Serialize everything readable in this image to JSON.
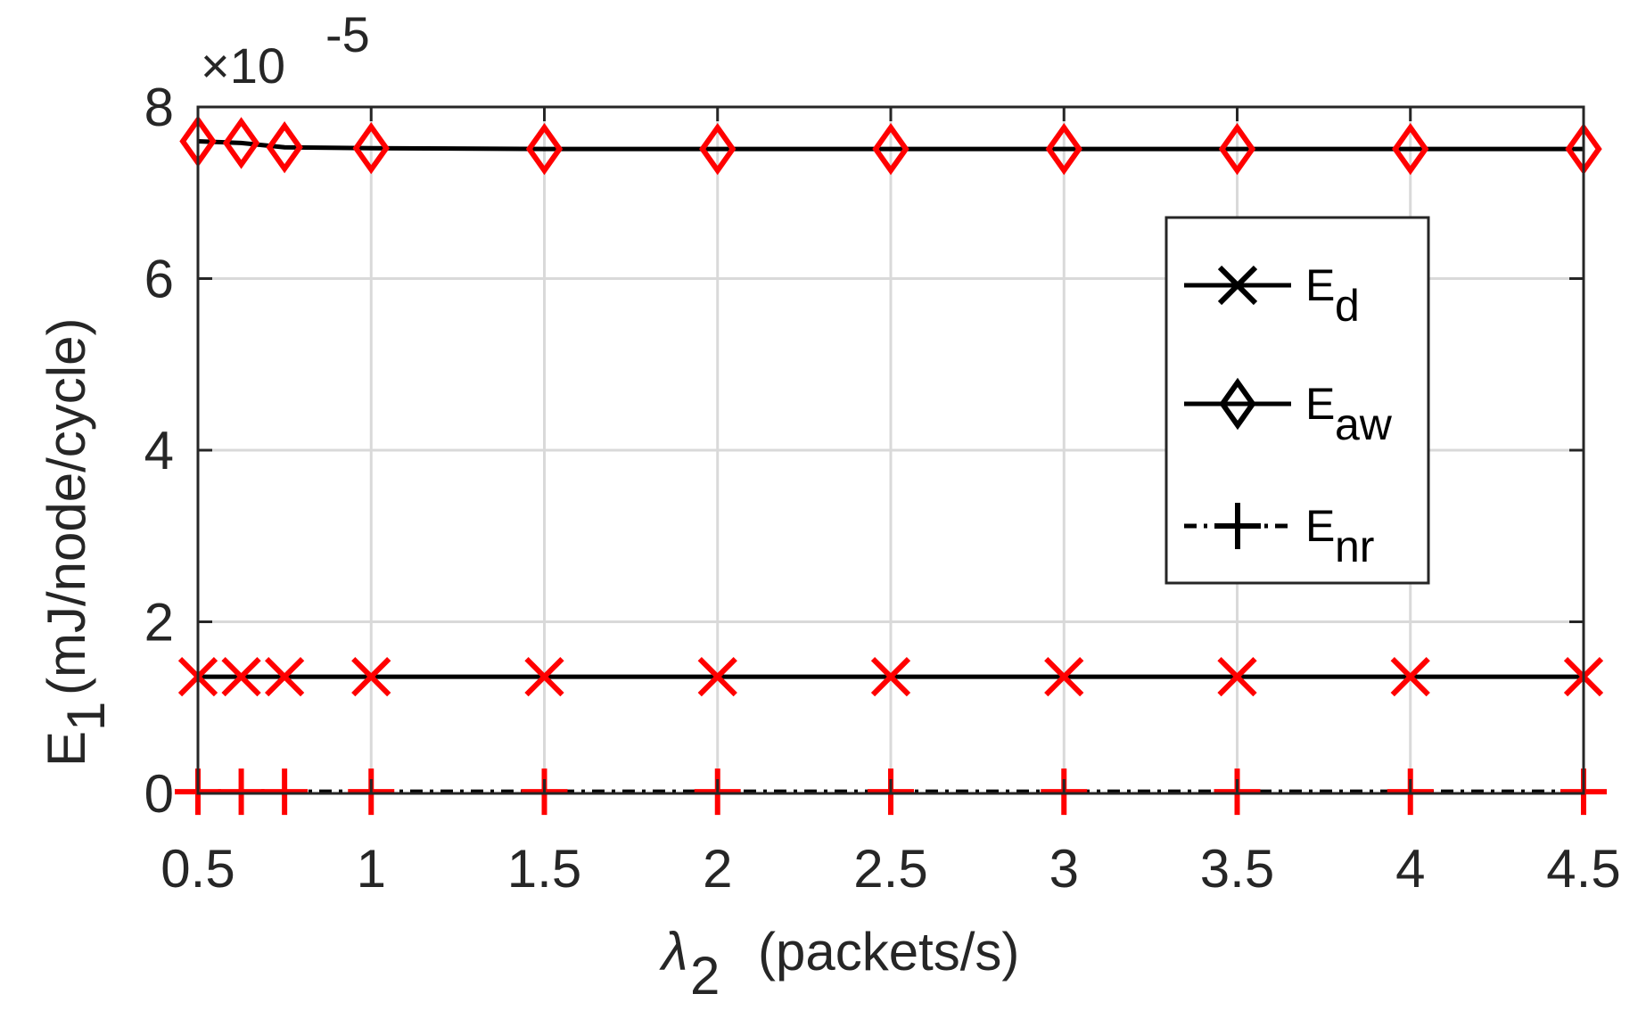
{
  "chart_data": {
    "type": "line",
    "xlabel": "(packets/s)",
    "xlabel_symbol": "λ",
    "xlabel_sub": "2",
    "ylabel": "(mJ/node/cycle)",
    "ylabel_symbol": "E",
    "ylabel_sub": "1",
    "exponent_prefix": "×10",
    "exponent": "-5",
    "xlim": [
      0.5,
      4.5
    ],
    "ylim": [
      0,
      8
    ],
    "y_scale_factor": 1e-05,
    "xticks": [
      0.5,
      1,
      1.5,
      2,
      2.5,
      3,
      3.5,
      4,
      4.5
    ],
    "yticks": [
      0,
      2,
      4,
      6,
      8
    ],
    "xtick_labels": [
      "0.5",
      "1",
      "1.5",
      "2",
      "2.5",
      "3",
      "3.5",
      "4",
      "4.5"
    ],
    "ytick_labels": [
      "0",
      "2",
      "4",
      "6",
      "8"
    ],
    "grid": true,
    "legend_position": "top-right",
    "x": [
      0.5,
      0.625,
      0.75,
      1,
      1.5,
      2,
      2.5,
      3,
      3.5,
      4,
      4.5
    ],
    "series": [
      {
        "name": "E",
        "name_sub": "d",
        "marker": "x",
        "line_style": "solid",
        "values": [
          1.36,
          1.36,
          1.36,
          1.36,
          1.36,
          1.36,
          1.36,
          1.36,
          1.36,
          1.36,
          1.36
        ]
      },
      {
        "name": "E",
        "name_sub": "aw",
        "marker": "diamond",
        "line_style": "solid",
        "values": [
          7.6,
          7.58,
          7.53,
          7.52,
          7.51,
          7.51,
          7.51,
          7.51,
          7.51,
          7.51,
          7.51
        ]
      },
      {
        "name": "E",
        "name_sub": "nr",
        "marker": "plus",
        "line_style": "dashdot",
        "values": [
          0.02,
          0.02,
          0.02,
          0.02,
          0.02,
          0.02,
          0.02,
          0.02,
          0.02,
          0.02,
          0.02
        ]
      }
    ],
    "colors": {
      "line": "#000000",
      "marker": "#ff0000",
      "grid": "#d9d9d9",
      "axis": "#262626",
      "legend_border": "#262626"
    }
  }
}
